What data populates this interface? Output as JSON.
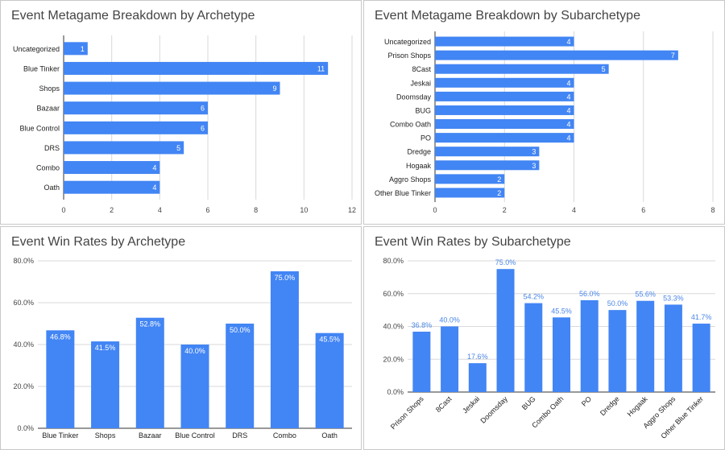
{
  "chart_data": [
    {
      "type": "bar",
      "orientation": "horizontal",
      "title": "Event Metagame Breakdown by Archetype",
      "categories": [
        "Uncategorized",
        "Blue Tinker",
        "Shops",
        "Bazaar",
        "Blue Control",
        "DRS",
        "Combo",
        "Oath"
      ],
      "values": [
        1,
        11,
        9,
        6,
        6,
        5,
        4,
        4
      ],
      "data_labels": [
        "1",
        "11",
        "9",
        "6",
        "6",
        "5",
        "4",
        "4"
      ],
      "xlim": [
        0,
        12
      ],
      "ticks": [
        0,
        2,
        4,
        6,
        8,
        10,
        12
      ],
      "tick_labels": [
        "0",
        "2",
        "4",
        "6",
        "8",
        "10",
        "12"
      ],
      "grid": true,
      "color": "#4285f4"
    },
    {
      "type": "bar",
      "orientation": "horizontal",
      "title": "Event Metagame Breakdown by Subarchetype",
      "categories": [
        "Uncategorized",
        "Prison Shops",
        "8Cast",
        "Jeskai",
        "Doomsday",
        "BUG",
        "Combo Oath",
        "PO",
        "Dredge",
        "Hogaak",
        "Aggro Shops",
        "Other Blue Tinker"
      ],
      "values": [
        4,
        7,
        5,
        4,
        4,
        4,
        4,
        4,
        3,
        3,
        2,
        2
      ],
      "data_labels": [
        "4",
        "7",
        "5",
        "4",
        "4",
        "4",
        "4",
        "4",
        "3",
        "3",
        "2",
        "2"
      ],
      "xlim": [
        0,
        8
      ],
      "ticks": [
        0,
        2,
        4,
        6,
        8
      ],
      "tick_labels": [
        "0",
        "2",
        "4",
        "6",
        "8"
      ],
      "grid": true,
      "color": "#4285f4"
    },
    {
      "type": "bar",
      "orientation": "vertical",
      "title": "Event Win Rates by Archetype",
      "categories": [
        "Blue Tinker",
        "Shops",
        "Bazaar",
        "Blue Control",
        "DRS",
        "Combo",
        "Oath"
      ],
      "values": [
        46.8,
        41.5,
        52.8,
        40.0,
        50.0,
        75.0,
        45.5
      ],
      "data_labels": [
        "46.8%",
        "41.5%",
        "52.8%",
        "40.0%",
        "50.0%",
        "75.0%",
        "45.5%"
      ],
      "ylim": [
        0,
        80
      ],
      "ticks": [
        0,
        20,
        40,
        60,
        80
      ],
      "tick_labels": [
        "0.0%",
        "20.0%",
        "40.0%",
        "60.0%",
        "80.0%"
      ],
      "grid": true,
      "color": "#4285f4"
    },
    {
      "type": "bar",
      "orientation": "vertical",
      "title": "Event Win Rates by Subarchetype",
      "categories": [
        "Prison Shops",
        "8Cast",
        "Jeskai",
        "Doomsday",
        "BUG",
        "Combo Oath",
        "PO",
        "Dredge",
        "Hogaak",
        "Aggro Shops",
        "Other Blue Tinker"
      ],
      "values": [
        36.8,
        40.0,
        17.6,
        75.0,
        54.2,
        45.5,
        56.0,
        50.0,
        55.6,
        53.3,
        41.7
      ],
      "data_labels": [
        "36.8%",
        "40.0%",
        "17.6%",
        "75.0%",
        "54.2%",
        "45.5%",
        "56.0%",
        "50.0%",
        "55.6%",
        "53.3%",
        "41.7%"
      ],
      "ylim": [
        0,
        80
      ],
      "ticks": [
        0,
        20,
        40,
        60,
        80
      ],
      "tick_labels": [
        "0.0%",
        "20.0%",
        "40.0%",
        "60.0%",
        "80.0%"
      ],
      "grid": true,
      "rotated_category_labels": true,
      "color": "#4285f4"
    }
  ]
}
